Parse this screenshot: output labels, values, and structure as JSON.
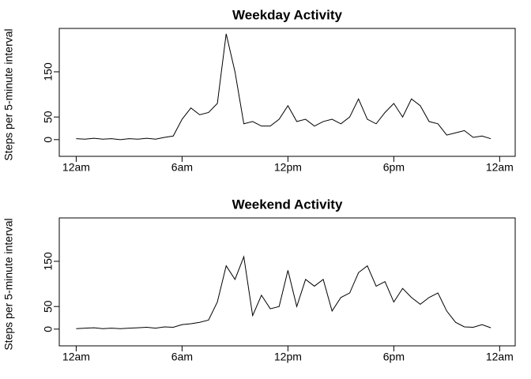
{
  "chart_data": [
    {
      "type": "line",
      "title": "Weekday Activity",
      "ylabel": "Steps per 5-minute interval",
      "color": "#000000",
      "x": [
        0,
        0.5,
        1,
        1.5,
        2,
        2.5,
        3,
        3.5,
        4,
        4.5,
        5,
        5.5,
        6,
        6.5,
        7,
        7.5,
        8,
        8.5,
        9,
        9.5,
        10,
        10.5,
        11,
        11.5,
        12,
        12.5,
        13,
        13.5,
        14,
        14.5,
        15,
        15.5,
        16,
        16.5,
        17,
        17.5,
        18,
        18.5,
        19,
        19.5,
        20,
        20.5,
        21,
        21.5,
        22,
        22.5,
        23,
        23.5
      ],
      "values": [
        2,
        1,
        3,
        1,
        2,
        0,
        2,
        1,
        3,
        1,
        5,
        8,
        45,
        70,
        55,
        60,
        80,
        234,
        150,
        35,
        40,
        30,
        30,
        45,
        75,
        40,
        45,
        30,
        40,
        45,
        35,
        50,
        90,
        45,
        35,
        60,
        80,
        50,
        90,
        75,
        40,
        35,
        10,
        15,
        20,
        5,
        8,
        2
      ],
      "xlim": [
        -0.96,
        24.88
      ],
      "ylim": [
        -37,
        246
      ],
      "xticks": [
        {
          "value": 0,
          "label": "12am"
        },
        {
          "value": 6,
          "label": "6am"
        },
        {
          "value": 12,
          "label": "12pm"
        },
        {
          "value": 18,
          "label": "6pm"
        },
        {
          "value": 24,
          "label": "12am"
        }
      ],
      "yticks": [
        0,
        50,
        150
      ]
    },
    {
      "type": "line",
      "title": "Weekend Activity",
      "ylabel": "Steps per 5-minute interval",
      "color": "#000000",
      "x": [
        0,
        0.5,
        1,
        1.5,
        2,
        2.5,
        3,
        3.5,
        4,
        4.5,
        5,
        5.5,
        6,
        6.5,
        7,
        7.5,
        8,
        8.5,
        9,
        9.5,
        10,
        10.5,
        11,
        11.5,
        12,
        12.5,
        13,
        13.5,
        14,
        14.5,
        15,
        15.5,
        16,
        16.5,
        17,
        17.5,
        18,
        18.5,
        19,
        19.5,
        20,
        20.5,
        21,
        21.5,
        22,
        22.5,
        23,
        23.5
      ],
      "values": [
        1,
        2,
        3,
        1,
        2,
        1,
        2,
        3,
        4,
        2,
        5,
        4,
        10,
        12,
        15,
        20,
        60,
        140,
        110,
        160,
        30,
        75,
        45,
        50,
        130,
        50,
        110,
        95,
        110,
        40,
        70,
        80,
        125,
        140,
        95,
        105,
        60,
        90,
        70,
        55,
        70,
        80,
        40,
        15,
        5,
        4,
        10,
        3
      ],
      "xlim": [
        -0.96,
        24.88
      ],
      "ylim": [
        -37,
        246
      ],
      "xticks": [
        {
          "value": 0,
          "label": "12am"
        },
        {
          "value": 6,
          "label": "6am"
        },
        {
          "value": 12,
          "label": "12pm"
        },
        {
          "value": 18,
          "label": "6pm"
        },
        {
          "value": 24,
          "label": "12am"
        }
      ],
      "yticks": [
        0,
        50,
        150
      ]
    }
  ]
}
